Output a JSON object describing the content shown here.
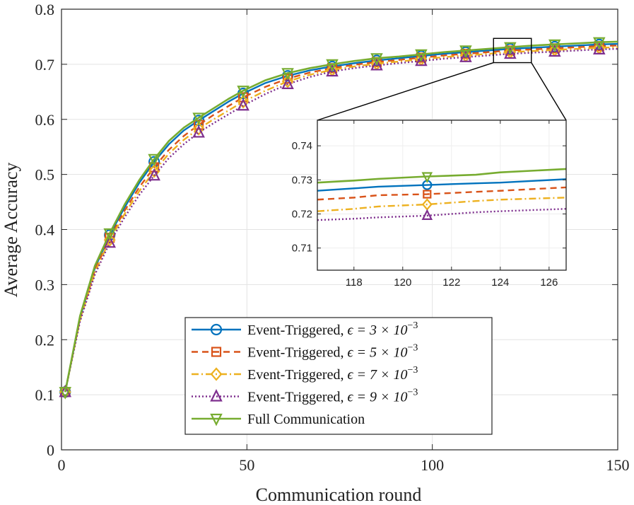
{
  "chart_data": {
    "type": "line",
    "title": "",
    "xlabel": "Communication round",
    "ylabel": "Average Accuracy",
    "xlim": [
      0,
      150
    ],
    "ylim": [
      0,
      0.8
    ],
    "xticks": [
      0,
      50,
      100,
      150
    ],
    "yticks": [
      0,
      0.1,
      0.2,
      0.3,
      0.4,
      0.5,
      0.6,
      0.7,
      0.8
    ],
    "xtick_labels": [
      "0",
      "50",
      "100",
      "150"
    ],
    "ytick_labels": [
      "0",
      "0.1",
      "0.2",
      "0.3",
      "0.4",
      "0.5",
      "0.6",
      "0.7",
      "0.8"
    ],
    "grid": true,
    "legend_position": "bottom-center",
    "marker_x": [
      1,
      13,
      25,
      37,
      49,
      61,
      73,
      85,
      97,
      109,
      121,
      133,
      145
    ],
    "series": [
      {
        "name": "Event-Triggered, ε = 3 × 10⁻³",
        "legend_prefix": "Event-Triggered, ",
        "legend_math": "ϵ = 3 × 10",
        "legend_exp": "−3",
        "color": "#0072BD",
        "dash": "",
        "width": 2.4,
        "marker": "circle",
        "x": [
          1,
          5,
          9,
          13,
          17,
          21,
          25,
          29,
          33,
          37,
          41,
          45,
          49,
          55,
          61,
          67,
          73,
          79,
          85,
          91,
          97,
          103,
          109,
          115,
          121,
          127,
          133,
          139,
          145,
          150
        ],
        "y": [
          0.105,
          0.24,
          0.33,
          0.39,
          0.44,
          0.485,
          0.523,
          0.555,
          0.58,
          0.598,
          0.615,
          0.632,
          0.647,
          0.666,
          0.679,
          0.689,
          0.696,
          0.702,
          0.707,
          0.711,
          0.715,
          0.719,
          0.722,
          0.725,
          0.728,
          0.73,
          0.732,
          0.734,
          0.736,
          0.737
        ]
      },
      {
        "name": "Event-Triggered, ε = 5 × 10⁻³",
        "legend_prefix": "Event-Triggered, ",
        "legend_math": "ϵ = 5 × 10",
        "legend_exp": "−3",
        "color": "#D95319",
        "dash": "9,6",
        "width": 2.4,
        "marker": "square",
        "x": [
          1,
          5,
          9,
          13,
          17,
          21,
          25,
          29,
          33,
          37,
          41,
          45,
          49,
          55,
          61,
          67,
          73,
          79,
          85,
          91,
          97,
          103,
          109,
          115,
          121,
          127,
          133,
          139,
          145,
          150
        ],
        "y": [
          0.105,
          0.238,
          0.326,
          0.385,
          0.434,
          0.477,
          0.513,
          0.545,
          0.57,
          0.59,
          0.608,
          0.624,
          0.64,
          0.659,
          0.674,
          0.685,
          0.693,
          0.699,
          0.704,
          0.708,
          0.712,
          0.716,
          0.719,
          0.722,
          0.725,
          0.727,
          0.729,
          0.731,
          0.733,
          0.734
        ]
      },
      {
        "name": "Event-Triggered, ε = 7 × 10⁻³",
        "legend_prefix": "Event-Triggered, ",
        "legend_math": "ϵ = 7 × 10",
        "legend_exp": "−3",
        "color": "#EDB120",
        "dash": "10,4,2,4",
        "width": 2.4,
        "marker": "diamond",
        "x": [
          1,
          5,
          9,
          13,
          17,
          21,
          25,
          29,
          33,
          37,
          41,
          45,
          49,
          55,
          61,
          67,
          73,
          79,
          85,
          91,
          97,
          103,
          109,
          115,
          121,
          127,
          133,
          139,
          145,
          150
        ],
        "y": [
          0.105,
          0.236,
          0.322,
          0.381,
          0.428,
          0.47,
          0.506,
          0.538,
          0.563,
          0.583,
          0.6,
          0.616,
          0.632,
          0.652,
          0.669,
          0.681,
          0.69,
          0.696,
          0.701,
          0.705,
          0.709,
          0.713,
          0.716,
          0.719,
          0.722,
          0.724,
          0.726,
          0.728,
          0.73,
          0.731
        ]
      },
      {
        "name": "Event-Triggered, ε = 9 × 10⁻³",
        "legend_prefix": "Event-Triggered, ",
        "legend_math": "ϵ = 9 × 10",
        "legend_exp": "−3",
        "color": "#7E2F8E",
        "dash": "2,3",
        "width": 2.4,
        "marker": "triangle-up",
        "x": [
          1,
          5,
          9,
          13,
          17,
          21,
          25,
          29,
          33,
          37,
          41,
          45,
          49,
          55,
          61,
          67,
          73,
          79,
          85,
          91,
          97,
          103,
          109,
          115,
          121,
          127,
          133,
          139,
          145,
          150
        ],
        "y": [
          0.105,
          0.233,
          0.318,
          0.376,
          0.422,
          0.463,
          0.498,
          0.53,
          0.555,
          0.576,
          0.593,
          0.609,
          0.625,
          0.646,
          0.664,
          0.677,
          0.687,
          0.693,
          0.698,
          0.702,
          0.706,
          0.71,
          0.713,
          0.716,
          0.719,
          0.721,
          0.723,
          0.725,
          0.727,
          0.728
        ]
      },
      {
        "name": "Full Communication",
        "legend_prefix": "Full Communication",
        "legend_math": "",
        "legend_exp": "",
        "color": "#77AC30",
        "dash": "",
        "width": 2.6,
        "marker": "triangle-down",
        "x": [
          1,
          5,
          9,
          13,
          17,
          21,
          25,
          29,
          33,
          37,
          41,
          45,
          49,
          55,
          61,
          67,
          73,
          79,
          85,
          91,
          97,
          103,
          109,
          115,
          121,
          127,
          133,
          139,
          145,
          150
        ],
        "y": [
          0.105,
          0.243,
          0.334,
          0.393,
          0.445,
          0.49,
          0.528,
          0.561,
          0.585,
          0.603,
          0.62,
          0.637,
          0.652,
          0.671,
          0.684,
          0.693,
          0.7,
          0.706,
          0.711,
          0.714,
          0.718,
          0.722,
          0.725,
          0.728,
          0.731,
          0.734,
          0.736,
          0.738,
          0.74,
          0.741
        ]
      }
    ],
    "inset": {
      "xlim": [
        116.5,
        126.7
      ],
      "ylim": [
        0.7035,
        0.7475
      ],
      "xticks": [
        118,
        120,
        122,
        124,
        126
      ],
      "yticks": [
        0.71,
        0.72,
        0.73,
        0.74
      ],
      "xtick_labels": [
        "118",
        "120",
        "122",
        "124",
        "126"
      ],
      "ytick_labels": [
        "0.71",
        "0.72",
        "0.73",
        "0.74"
      ],
      "zoom_window": {
        "x": [
          116.5,
          126.7
        ],
        "y": [
          0.703,
          0.747
        ]
      },
      "series_values": [
        {
          "x": [
            116.5,
            118,
            119,
            121,
            123,
            124,
            126.7
          ],
          "y": [
            0.7268,
            0.7275,
            0.728,
            0.7285,
            0.729,
            0.7292,
            0.7302
          ]
        },
        {
          "x": [
            116.5,
            118,
            119,
            121,
            123,
            124,
            126.7
          ],
          "y": [
            0.7242,
            0.7248,
            0.7255,
            0.7258,
            0.7265,
            0.7268,
            0.7278
          ]
        },
        {
          "x": [
            116.5,
            118,
            119,
            121,
            123,
            124,
            126.7
          ],
          "y": [
            0.7208,
            0.7215,
            0.7222,
            0.7228,
            0.7238,
            0.7242,
            0.7248
          ]
        },
        {
          "x": [
            116.5,
            118,
            119,
            121,
            123,
            124,
            126.7
          ],
          "y": [
            0.7182,
            0.7186,
            0.719,
            0.7195,
            0.7205,
            0.7208,
            0.7215
          ]
        },
        {
          "x": [
            116.5,
            118,
            119,
            121,
            123,
            124,
            126.7
          ],
          "y": [
            0.7292,
            0.7298,
            0.7303,
            0.731,
            0.7315,
            0.7322,
            0.7332
          ]
        }
      ],
      "marker_x": 121
    }
  }
}
